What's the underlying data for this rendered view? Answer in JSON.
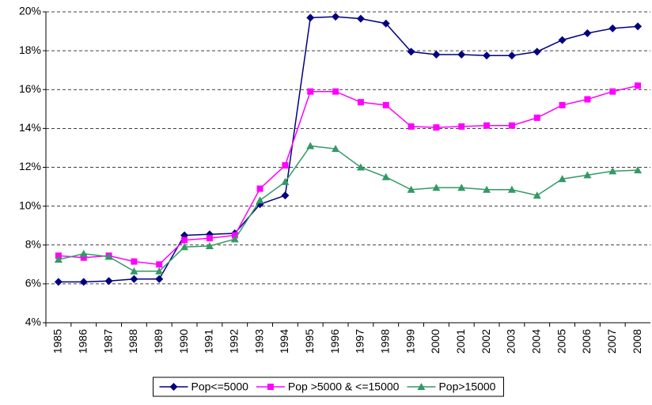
{
  "chart_data": {
    "type": "line",
    "categories": [
      "1985",
      "1986",
      "1987",
      "1988",
      "1989",
      "1990",
      "1991",
      "1992",
      "1993",
      "1994",
      "1995",
      "1996",
      "1997",
      "1998",
      "1999",
      "2000",
      "2001",
      "2002",
      "2003",
      "2004",
      "2005",
      "2006",
      "2007",
      "2008"
    ],
    "series": [
      {
        "name": "Pop<=5000",
        "color": "#000080",
        "marker": "diamond",
        "values": [
          6.1,
          6.1,
          6.15,
          6.25,
          6.25,
          8.5,
          8.55,
          8.6,
          10.1,
          10.55,
          19.7,
          19.75,
          19.65,
          19.4,
          17.95,
          17.8,
          17.8,
          17.75,
          17.75,
          17.95,
          18.55,
          18.9,
          19.15,
          19.25
        ]
      },
      {
        "name": "Pop >5000 & <=15000",
        "color": "#ff00ff",
        "marker": "square",
        "values": [
          7.45,
          7.35,
          7.45,
          7.15,
          7.0,
          8.25,
          8.35,
          8.5,
          10.9,
          12.1,
          15.9,
          15.9,
          15.35,
          15.2,
          14.1,
          14.05,
          14.1,
          14.15,
          14.15,
          14.55,
          15.2,
          15.5,
          15.9,
          16.2
        ]
      },
      {
        "name": "Pop>15000",
        "color": "#339966",
        "marker": "triangle",
        "values": [
          7.25,
          7.55,
          7.4,
          6.65,
          6.65,
          7.9,
          7.95,
          8.3,
          10.3,
          11.25,
          13.1,
          12.95,
          12.0,
          11.5,
          10.85,
          10.95,
          10.95,
          10.85,
          10.85,
          10.55,
          11.4,
          11.6,
          11.8,
          11.85
        ]
      }
    ],
    "ylim": [
      4,
      20
    ],
    "yticks": [
      {
        "value": 4,
        "label": "4%"
      },
      {
        "value": 6,
        "label": "6%"
      },
      {
        "value": 8,
        "label": "8%"
      },
      {
        "value": 10,
        "label": "10%"
      },
      {
        "value": 12,
        "label": "12%"
      },
      {
        "value": 14,
        "label": "14%"
      },
      {
        "value": 16,
        "label": "16%"
      },
      {
        "value": 18,
        "label": "18%"
      },
      {
        "value": 20,
        "label": "20%"
      }
    ],
    "grid": true,
    "legend": "bottom"
  }
}
